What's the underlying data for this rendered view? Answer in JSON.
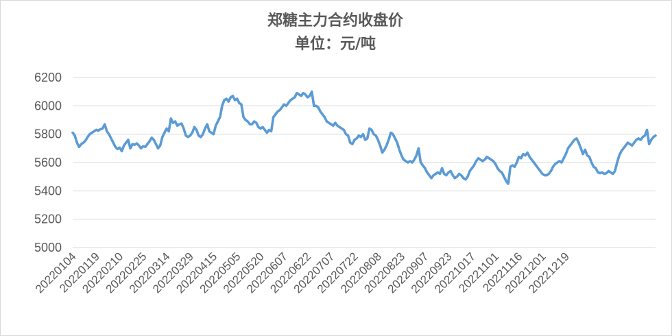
{
  "chart_data": {
    "type": "line",
    "title": [
      "郑糖主力合约收盘价",
      "单位：元/吨"
    ],
    "xlabel": "",
    "ylabel": "",
    "ylim": [
      5000,
      6200
    ],
    "yticks": [
      5000,
      5200,
      5400,
      5600,
      5800,
      6000,
      6200
    ],
    "grid": "horizontal",
    "legend": "none",
    "x_tick_labels": [
      "20220104",
      "20220119",
      "20220210",
      "20220225",
      "20220314",
      "20220329",
      "20220415",
      "20220505",
      "20220520",
      "20220607",
      "20220622",
      "20220707",
      "20220722",
      "20220808",
      "20220823",
      "20220907",
      "20220923",
      "20221017",
      "20221101",
      "20221116",
      "20221201",
      "20221219"
    ],
    "x_tick_step": 11,
    "color": "#5B9BD5",
    "series": [
      {
        "name": "",
        "values": [
          5810,
          5790,
          5740,
          5710,
          5730,
          5740,
          5755,
          5780,
          5800,
          5810,
          5820,
          5830,
          5825,
          5835,
          5840,
          5870,
          5820,
          5800,
          5770,
          5740,
          5710,
          5695,
          5705,
          5680,
          5720,
          5740,
          5760,
          5700,
          5730,
          5725,
          5735,
          5720,
          5700,
          5715,
          5710,
          5730,
          5750,
          5775,
          5760,
          5730,
          5700,
          5720,
          5780,
          5810,
          5840,
          5820,
          5910,
          5880,
          5890,
          5860,
          5870,
          5875,
          5840,
          5790,
          5780,
          5790,
          5810,
          5850,
          5830,
          5790,
          5780,
          5800,
          5840,
          5870,
          5820,
          5810,
          5800,
          5860,
          5890,
          5920,
          6000,
          6040,
          6050,
          6030,
          6060,
          6070,
          6040,
          6050,
          6020,
          6010,
          5920,
          5900,
          5890,
          5870,
          5870,
          5890,
          5880,
          5850,
          5840,
          5850,
          5830,
          5810,
          5830,
          5820,
          5920,
          5940,
          5960,
          5970,
          5990,
          6010,
          6000,
          6020,
          6040,
          6050,
          6060,
          6090,
          6080,
          6070,
          6090,
          6080,
          6060,
          6070,
          6100,
          6000,
          6000,
          5990,
          5960,
          5940,
          5920,
          5890,
          5880,
          5870,
          5860,
          5880,
          5860,
          5850,
          5840,
          5830,
          5800,
          5790,
          5740,
          5730,
          5760,
          5770,
          5790,
          5780,
          5800,
          5760,
          5770,
          5840,
          5830,
          5800,
          5790,
          5760,
          5720,
          5670,
          5690,
          5720,
          5760,
          5810,
          5800,
          5770,
          5740,
          5690,
          5650,
          5620,
          5610,
          5600,
          5610,
          5600,
          5620,
          5650,
          5700,
          5600,
          5580,
          5560,
          5530,
          5510,
          5490,
          5510,
          5520,
          5530,
          5520,
          5560,
          5520,
          5510,
          5530,
          5540,
          5510,
          5490,
          5500,
          5520,
          5510,
          5490,
          5480,
          5500,
          5540,
          5560,
          5580,
          5610,
          5630,
          5620,
          5610,
          5620,
          5640,
          5630,
          5620,
          5610,
          5590,
          5560,
          5540,
          5530,
          5500,
          5470,
          5450,
          5570,
          5580,
          5570,
          5600,
          5640,
          5630,
          5660,
          5650,
          5670,
          5640,
          5620,
          5600,
          5580,
          5560,
          5540,
          5520,
          5510,
          5510,
          5520,
          5540,
          5570,
          5590,
          5600,
          5610,
          5600,
          5630,
          5660,
          5700,
          5720,
          5740,
          5760,
          5770,
          5740,
          5700,
          5660,
          5690,
          5650,
          5640,
          5600,
          5570,
          5560,
          5530,
          5525,
          5530,
          5520,
          5525,
          5540,
          5530,
          5520,
          5540,
          5600,
          5650,
          5680,
          5700,
          5720,
          5740,
          5730,
          5720,
          5740,
          5760,
          5770,
          5760,
          5780,
          5790,
          5830,
          5730,
          5760,
          5780,
          5790
        ]
      }
    ]
  }
}
